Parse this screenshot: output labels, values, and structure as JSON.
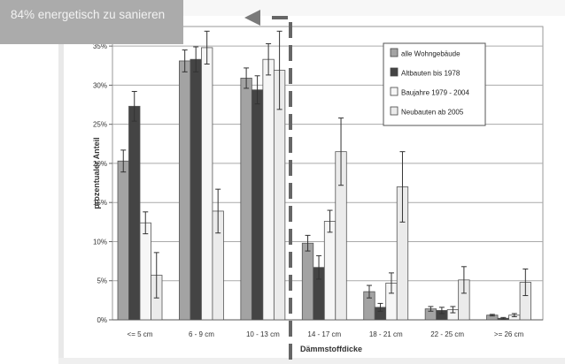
{
  "banner": {
    "text": "84% energetisch zu sanieren"
  },
  "chart_data": {
    "type": "bar",
    "title": "",
    "xlabel": "Dämmstoffdicke",
    "ylabel": "prozentualer Anteil",
    "ylim": [
      0,
      0.375
    ],
    "yticks": [
      "0%",
      "5%",
      "10%",
      "15%",
      "20%",
      "25%",
      "30%",
      "35%"
    ],
    "grid": true,
    "legend_position": "top-right (inside plot)",
    "categories": [
      "<= 5 cm",
      "6 - 9 cm",
      "10 - 13 cm",
      "14 - 17 cm",
      "18 - 21 cm",
      "22 - 25 cm",
      ">= 26 cm"
    ],
    "series": [
      {
        "name": "alle Wohngebäude",
        "color": "#a3a3a3",
        "values": [
          0.203,
          0.331,
          0.309,
          0.098,
          0.036,
          0.014,
          0.006
        ],
        "errors": [
          0.014,
          0.014,
          0.013,
          0.01,
          0.008,
          0.003,
          0.001
        ]
      },
      {
        "name": "Altbauten bis 1978",
        "color": "#444444",
        "values": [
          0.273,
          0.333,
          0.294,
          0.067,
          0.016,
          0.012,
          0.002
        ],
        "errors": [
          0.019,
          0.016,
          0.018,
          0.015,
          0.005,
          0.004,
          0.001
        ]
      },
      {
        "name": "Baujahre 1979 - 2004",
        "color": "#f6f6f6",
        "values": [
          0.124,
          0.348,
          0.333,
          0.126,
          0.047,
          0.013,
          0.006
        ],
        "errors": [
          0.014,
          0.021,
          0.02,
          0.014,
          0.013,
          0.004,
          0.002
        ]
      },
      {
        "name": "Neubauten ab 2005",
        "color": "#ebebeb",
        "values": [
          0.057,
          0.139,
          0.319,
          0.215,
          0.17,
          0.051,
          0.048
        ],
        "errors": [
          0.029,
          0.028,
          0.05,
          0.043,
          0.045,
          0.017,
          0.017
        ]
      }
    ],
    "annotation": {
      "type": "dashed divider with arrow",
      "position_after_category": "10 - 13 cm"
    }
  }
}
